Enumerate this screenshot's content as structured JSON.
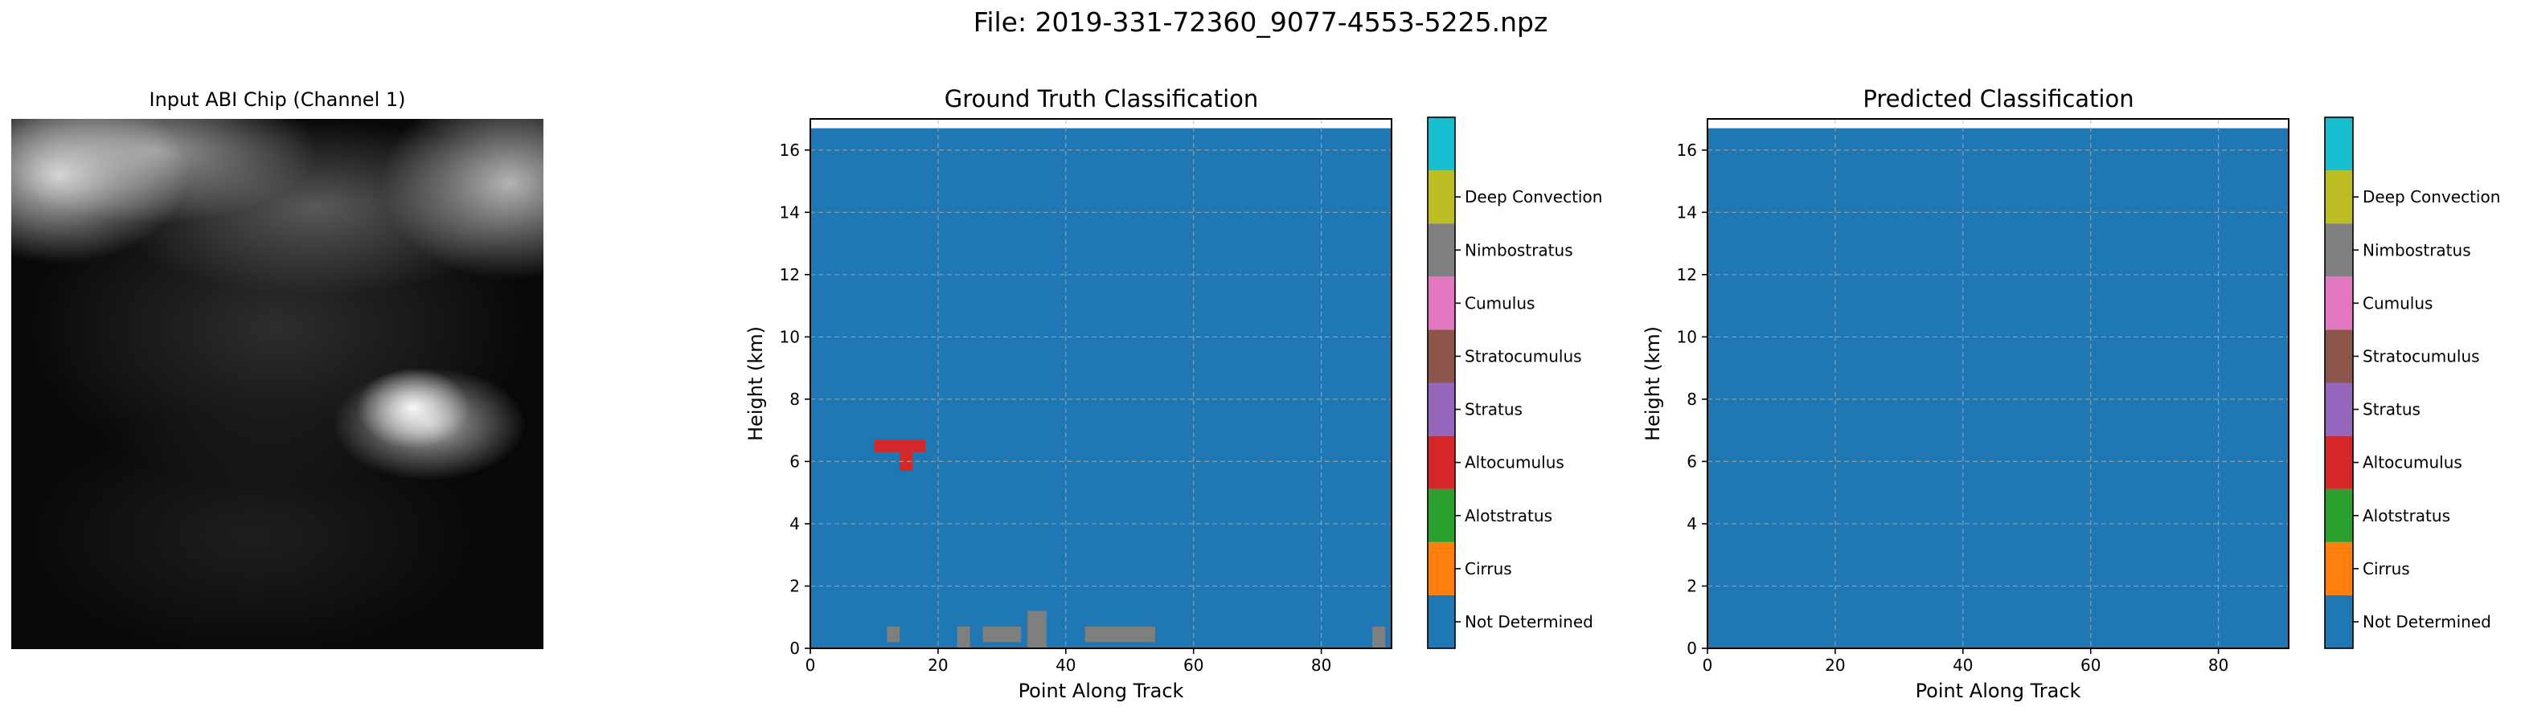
{
  "figure": {
    "suptitle": "File: 2019-331-72360_9077-4553-5225.npz"
  },
  "input_chip": {
    "title": "Input ABI Chip (Channel 1)",
    "colormap": "gray"
  },
  "classes": [
    {
      "name": "Not Determined",
      "color": "#1f77b4"
    },
    {
      "name": "Cirrus",
      "color": "#ff7f0e"
    },
    {
      "name": "Alotstratus",
      "color": "#2ca02c"
    },
    {
      "name": "Altocumulus",
      "color": "#d62728"
    },
    {
      "name": "Stratus",
      "color": "#9467bd"
    },
    {
      "name": "Stratocumulus",
      "color": "#8c564b"
    },
    {
      "name": "Cumulus",
      "color": "#e377c2"
    },
    {
      "name": "Nimbostratus",
      "color": "#7f7f7f"
    },
    {
      "name": "Deep Convection",
      "color": "#bcbd22"
    },
    {
      "name": "",
      "color": "#17becf"
    }
  ],
  "chart_data": [
    {
      "type": "heatmap",
      "title": "Ground Truth Classification",
      "xlabel": "Point Along Track",
      "ylabel": "Height (km)",
      "xlim": [
        0,
        91
      ],
      "ylim": [
        0,
        17
      ],
      "data_extent_y": [
        0,
        16.7
      ],
      "x_ticks": [
        0,
        20,
        40,
        60,
        80
      ],
      "y_ticks": [
        0,
        2,
        4,
        6,
        8,
        10,
        12,
        14,
        16
      ],
      "grid": true,
      "background_class": "Not Determined",
      "regions": [
        {
          "class": "Altocumulus",
          "x": [
            10,
            18
          ],
          "y": [
            6.3,
            6.7
          ]
        },
        {
          "class": "Altocumulus",
          "x": [
            14,
            16
          ],
          "y": [
            5.7,
            6.3
          ]
        },
        {
          "class": "Nimbostratus",
          "x": [
            12,
            14
          ],
          "y": [
            0.2,
            0.7
          ]
        },
        {
          "class": "Nimbostratus",
          "x": [
            23,
            25
          ],
          "y": [
            0,
            0.7
          ]
        },
        {
          "class": "Nimbostratus",
          "x": [
            27,
            33
          ],
          "y": [
            0.2,
            0.7
          ]
        },
        {
          "class": "Nimbostratus",
          "x": [
            34,
            37
          ],
          "y": [
            0,
            1.2
          ]
        },
        {
          "class": "Nimbostratus",
          "x": [
            43,
            54
          ],
          "y": [
            0.2,
            0.7
          ]
        },
        {
          "class": "Nimbostratus",
          "x": [
            88,
            90
          ],
          "y": [
            0,
            0.7
          ]
        }
      ]
    },
    {
      "type": "heatmap",
      "title": "Predicted Classification",
      "xlabel": "Point Along Track",
      "ylabel": "Height (km)",
      "xlim": [
        0,
        91
      ],
      "ylim": [
        0,
        17
      ],
      "data_extent_y": [
        0,
        16.7
      ],
      "x_ticks": [
        0,
        20,
        40,
        60,
        80
      ],
      "y_ticks": [
        0,
        2,
        4,
        6,
        8,
        10,
        12,
        14,
        16
      ],
      "grid": true,
      "background_class": "Not Determined",
      "regions": []
    }
  ]
}
